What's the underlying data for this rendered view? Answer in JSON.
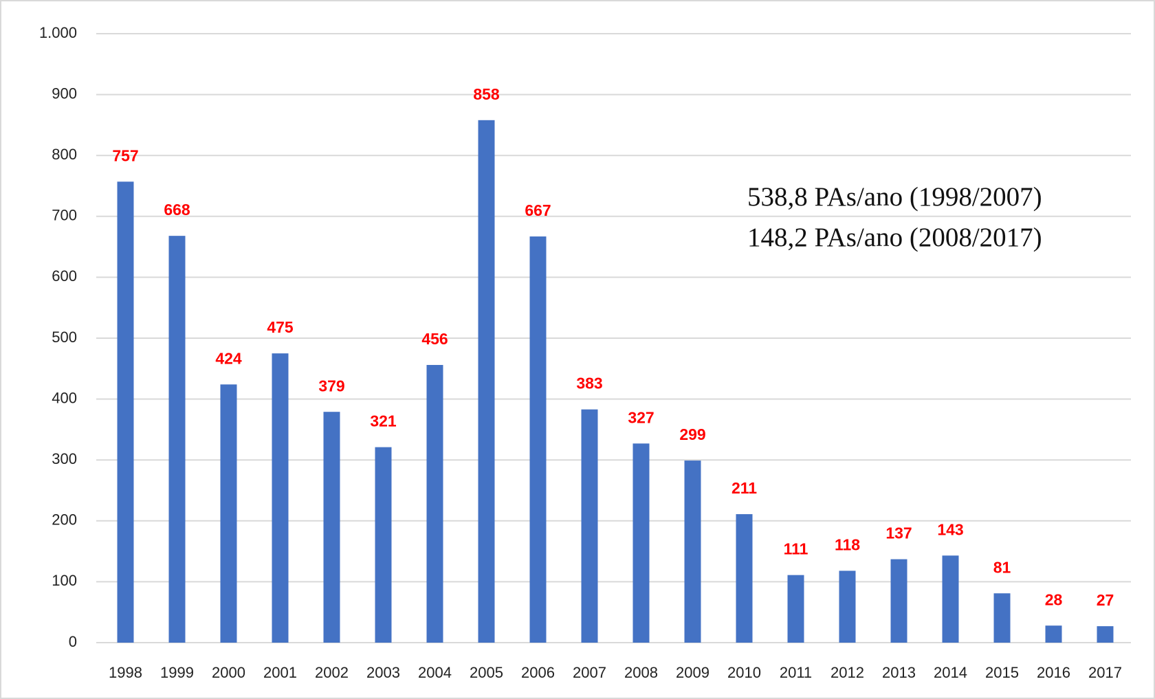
{
  "chart_data": {
    "type": "bar",
    "categories": [
      "1998",
      "1999",
      "2000",
      "2001",
      "2002",
      "2003",
      "2004",
      "2005",
      "2006",
      "2007",
      "2008",
      "2009",
      "2010",
      "2011",
      "2012",
      "2013",
      "2014",
      "2015",
      "2016",
      "2017"
    ],
    "values": [
      757,
      668,
      424,
      475,
      379,
      321,
      456,
      858,
      667,
      383,
      327,
      299,
      211,
      111,
      118,
      137,
      143,
      81,
      28,
      27
    ],
    "color": "#4472c4",
    "value_label_color": "#ff0000",
    "ylim": [
      0,
      1000
    ],
    "yticks": [
      0,
      100,
      200,
      300,
      400,
      500,
      600,
      700,
      800,
      900,
      {
        "value": 1000,
        "label": "1.000"
      }
    ],
    "grid": true,
    "annotations": [
      "538,8 PAs/ano (1998/2007)",
      "148,2 PAs/ano (2008/2017)"
    ]
  }
}
